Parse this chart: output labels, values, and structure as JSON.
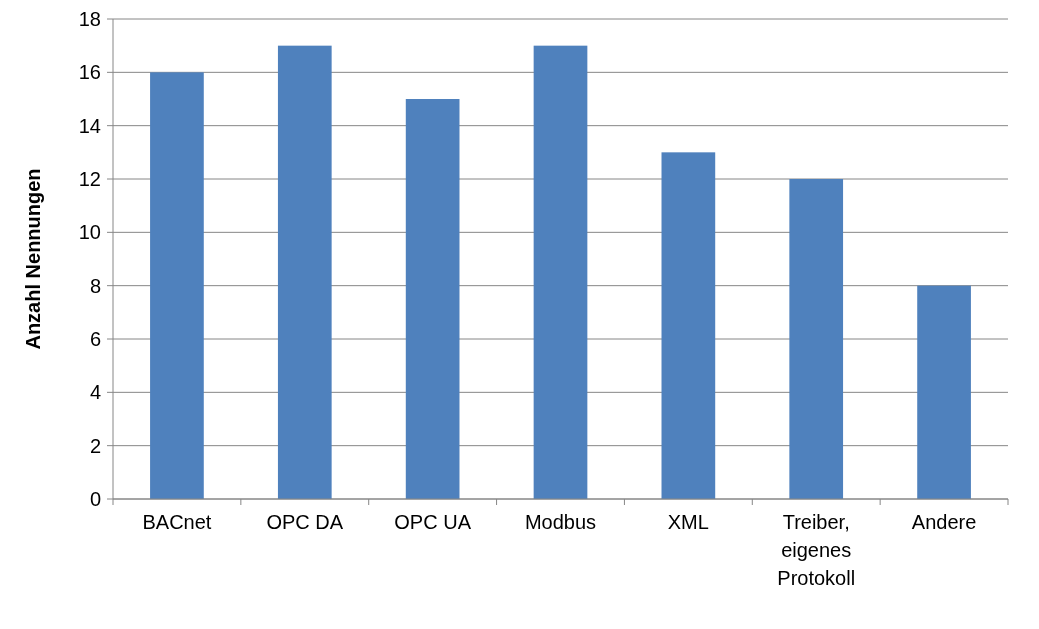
{
  "chart_data": {
    "type": "bar",
    "ylabel": "Anzahl Nennungen",
    "categories": [
      "BACnet",
      "OPC DA",
      "OPC UA",
      "Modbus",
      "XML",
      "Treiber, eigenes Protokoll",
      "Andere"
    ],
    "values": [
      16,
      17,
      15,
      17,
      13,
      12,
      8
    ],
    "color": "#4f81bd",
    "ylim": [
      0,
      18
    ],
    "yticks": [
      0,
      2,
      4,
      6,
      8,
      10,
      12,
      14,
      16,
      18
    ],
    "grid": "y"
  }
}
